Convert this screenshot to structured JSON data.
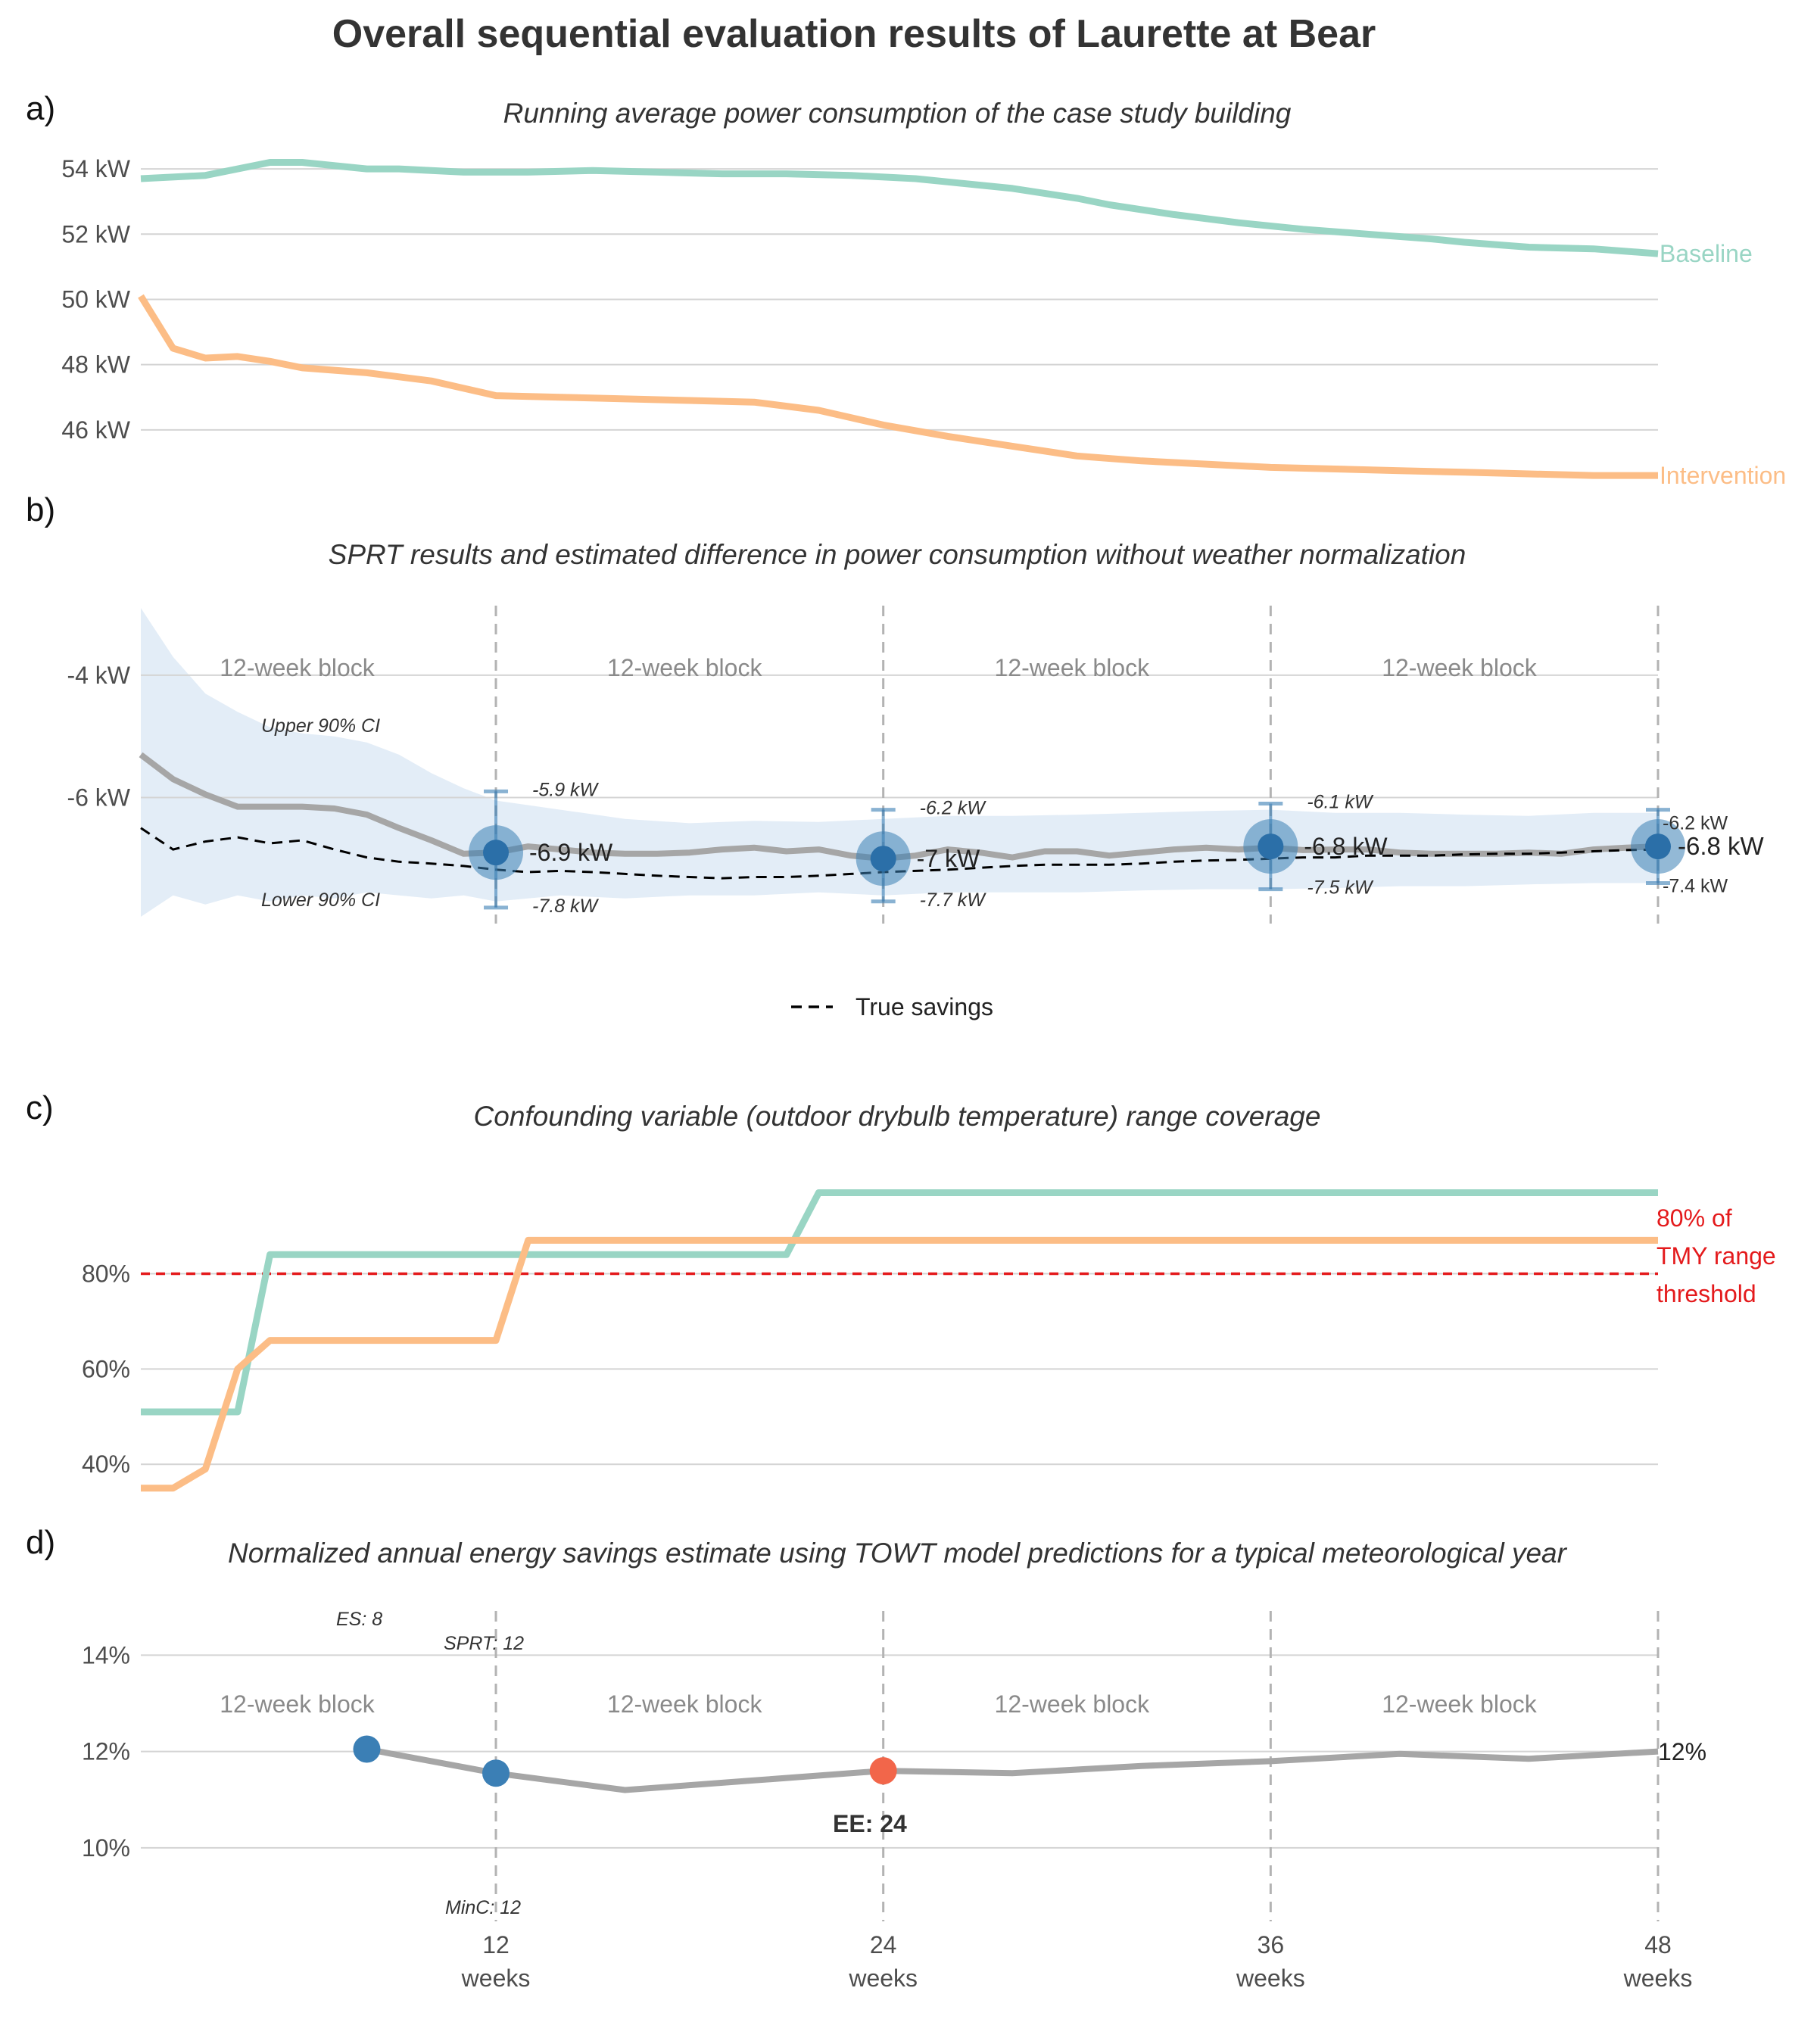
{
  "figure": {
    "title": "Overall sequential evaluation results of Laurette at Bear",
    "x_axis": {
      "ticks": [
        {
          "value": 12,
          "num": "12",
          "unit": "weeks"
        },
        {
          "value": 24,
          "num": "24",
          "unit": "weeks"
        },
        {
          "value": 36,
          "num": "36",
          "unit": "weeks"
        },
        {
          "value": 48,
          "num": "48",
          "unit": "weeks"
        }
      ],
      "xlim": [
        1,
        48
      ]
    },
    "block_label": "12-week block"
  },
  "panel_a": {
    "letter": "a)",
    "title": "Running average power consumption of the case study building"
  },
  "panel_b": {
    "letter": "b)",
    "title": "SPRT results and estimated difference in power consumption without weather normalization",
    "upper_ci_label": "Upper 90% CI",
    "lower_ci_label": "Lower 90% CI",
    "legend_label": "True savings",
    "estimate_labels": [
      {
        "x": 12,
        "est": "-6.9 kW",
        "upper": "-5.9 kW",
        "lower": "-7.8 kW"
      },
      {
        "x": 24,
        "est": "-7 kW",
        "upper": "-6.2 kW",
        "lower": "-7.7 kW"
      },
      {
        "x": 36,
        "est": "-6.8 kW",
        "upper": "-6.1 kW",
        "lower": "-7.5 kW"
      },
      {
        "x": 48,
        "est": "-6.8 kW",
        "upper": "-6.2 kW",
        "lower": "-7.4 kW"
      }
    ]
  },
  "panel_c": {
    "letter": "c)",
    "title": "Confounding variable (outdoor drybulb temperature) range coverage",
    "threshold_label": [
      "80% of",
      "TMY range",
      "threshold"
    ]
  },
  "panel_d": {
    "letter": "d)",
    "title": "Normalized annual energy savings estimate using TOWT model predictions for a typical meteorological year",
    "end_label": "12%",
    "annotations": {
      "es": "ES: 8",
      "sprt": "SPRT: 12",
      "ee": "EE: 24",
      "minc": "MinC: 12"
    }
  },
  "colors": {
    "baseline": "#99d5c4",
    "intervention": "#fcbd86",
    "estimate": "#a6a6a6",
    "ci_band": "#e3edf7",
    "point_blue": "#3b7fb5",
    "point_red": "#f2664a",
    "threshold": "#e41a1c"
  },
  "chart_data": [
    {
      "type": "line",
      "title": "Running average power consumption of the case study building",
      "ylim": [
        44,
        55
      ],
      "yticks": [
        "54 kW",
        "52 kW",
        "50 kW",
        "48 kW",
        "46 kW"
      ],
      "ytick_values": [
        54,
        52,
        50,
        48,
        46
      ],
      "series": [
        {
          "name": "Baseline",
          "x": [
            1,
            3,
            5,
            6,
            8,
            9,
            11,
            13,
            15,
            17,
            19,
            21,
            23,
            25,
            26,
            28,
            30,
            31,
            33,
            35,
            37,
            39,
            41,
            42,
            44,
            46,
            48
          ],
          "values": [
            53.7,
            53.8,
            54.2,
            54.2,
            54.0,
            54.0,
            53.9,
            53.9,
            53.95,
            53.9,
            53.85,
            53.85,
            53.8,
            53.7,
            53.6,
            53.4,
            53.1,
            52.9,
            52.6,
            52.35,
            52.15,
            52.0,
            51.85,
            51.75,
            51.6,
            51.55,
            51.4
          ]
        },
        {
          "name": "Intervention",
          "x": [
            1,
            2,
            3,
            4,
            5,
            6,
            8,
            10,
            12,
            14,
            16,
            18,
            20,
            22,
            24,
            26,
            28,
            30,
            32,
            34,
            36,
            38,
            40,
            42,
            44,
            46,
            48
          ],
          "values": [
            50.1,
            48.5,
            48.2,
            48.25,
            48.1,
            47.9,
            47.75,
            47.5,
            47.05,
            47.0,
            46.95,
            46.9,
            46.85,
            46.6,
            46.15,
            45.8,
            45.5,
            45.2,
            45.05,
            44.95,
            44.85,
            44.8,
            44.75,
            44.7,
            44.65,
            44.6,
            44.6
          ]
        }
      ]
    },
    {
      "type": "line",
      "title": "SPRT results and estimated difference in power consumption without weather normalization",
      "ylim": [
        -8,
        -2.8
      ],
      "yticks": [
        "-4 kW",
        "-6 kW"
      ],
      "ytick_values": [
        -4,
        -6
      ],
      "estimate": {
        "x": [
          1,
          2,
          3,
          4,
          5,
          6,
          7,
          8,
          9,
          10,
          11,
          12,
          13,
          14,
          15,
          16,
          17,
          18,
          19,
          20,
          21,
          22,
          23,
          24,
          25,
          26,
          27,
          28,
          29,
          30,
          31,
          32,
          33,
          34,
          35,
          36,
          37,
          38,
          39,
          40,
          41,
          42,
          43,
          44,
          45,
          46,
          47,
          48
        ],
        "values": [
          -5.3,
          -5.7,
          -5.95,
          -6.15,
          -6.15,
          -6.15,
          -6.18,
          -6.28,
          -6.5,
          -6.7,
          -6.92,
          -6.9,
          -6.8,
          -6.85,
          -6.9,
          -6.92,
          -6.92,
          -6.9,
          -6.85,
          -6.82,
          -6.88,
          -6.85,
          -6.95,
          -7.0,
          -6.95,
          -6.85,
          -6.9,
          -6.98,
          -6.88,
          -6.88,
          -6.95,
          -6.9,
          -6.85,
          -6.82,
          -6.85,
          -6.82,
          -6.86,
          -6.85,
          -6.85,
          -6.9,
          -6.92,
          -6.92,
          -6.92,
          -6.9,
          -6.92,
          -6.85,
          -6.82,
          -6.8
        ]
      },
      "true_savings": {
        "x": [
          1,
          2,
          3,
          4,
          5,
          6,
          7,
          8,
          9,
          10,
          11,
          12,
          13,
          14,
          15,
          16,
          17,
          18,
          19,
          20,
          21,
          22,
          23,
          24,
          25,
          26,
          27,
          28,
          29,
          30,
          31,
          32,
          33,
          34,
          35,
          36,
          37,
          38,
          39,
          40,
          41,
          42,
          43,
          44,
          45,
          46,
          47,
          48
        ],
        "values": [
          -6.5,
          -6.85,
          -6.72,
          -6.65,
          -6.75,
          -6.7,
          -6.85,
          -6.98,
          -7.05,
          -7.08,
          -7.12,
          -7.18,
          -7.22,
          -7.2,
          -7.22,
          -7.25,
          -7.28,
          -7.3,
          -7.32,
          -7.3,
          -7.3,
          -7.28,
          -7.25,
          -7.22,
          -7.2,
          -7.18,
          -7.15,
          -7.12,
          -7.1,
          -7.1,
          -7.1,
          -7.08,
          -7.05,
          -7.03,
          -7.02,
          -7.0,
          -6.98,
          -6.98,
          -6.95,
          -6.95,
          -6.95,
          -6.93,
          -6.92,
          -6.92,
          -6.9,
          -6.88,
          -6.86,
          -6.85
        ]
      },
      "ci_upper": {
        "x": [
          1,
          2,
          3,
          4,
          5,
          6,
          7,
          8,
          9,
          10,
          11,
          12,
          14,
          16,
          18,
          20,
          22,
          24,
          26,
          28,
          30,
          32,
          34,
          36,
          38,
          40,
          42,
          44,
          46,
          48
        ],
        "values": [
          -2.9,
          -3.7,
          -4.3,
          -4.6,
          -4.85,
          -4.95,
          -5.0,
          -5.1,
          -5.3,
          -5.6,
          -5.85,
          -6.05,
          -6.2,
          -6.35,
          -6.42,
          -6.38,
          -6.4,
          -6.35,
          -6.3,
          -6.3,
          -6.28,
          -6.25,
          -6.22,
          -6.2,
          -6.25,
          -6.25,
          -6.28,
          -6.3,
          -6.25,
          -6.25
        ]
      },
      "ci_lower": {
        "x": [
          1,
          2,
          3,
          4,
          5,
          6,
          7,
          8,
          9,
          10,
          11,
          12,
          14,
          16,
          18,
          20,
          22,
          24,
          26,
          28,
          30,
          32,
          34,
          36,
          38,
          40,
          42,
          44,
          46,
          48
        ],
        "values": [
          -7.95,
          -7.6,
          -7.75,
          -7.6,
          -7.7,
          -7.6,
          -7.65,
          -7.55,
          -7.6,
          -7.65,
          -7.6,
          -7.7,
          -7.6,
          -7.65,
          -7.6,
          -7.6,
          -7.55,
          -7.6,
          -7.55,
          -7.55,
          -7.55,
          -7.52,
          -7.5,
          -7.5,
          -7.48,
          -7.45,
          -7.45,
          -7.42,
          -7.4,
          -7.4
        ]
      },
      "sprt_points": [
        {
          "x": 12,
          "est": -6.9,
          "upper": -5.9,
          "lower": -7.8
        },
        {
          "x": 24,
          "est": -7.0,
          "upper": -6.2,
          "lower": -7.7
        },
        {
          "x": 36,
          "est": -6.8,
          "upper": -6.1,
          "lower": -7.5
        },
        {
          "x": 48,
          "est": -6.8,
          "upper": -6.2,
          "lower": -7.4
        }
      ]
    },
    {
      "type": "line",
      "title": "Confounding variable (outdoor drybulb temperature) range coverage",
      "ylim": [
        34,
        102
      ],
      "yticks": [
        "80%",
        "60%",
        "40%"
      ],
      "ytick_values": [
        80,
        60,
        40
      ],
      "threshold": 80,
      "series": [
        {
          "name": "Baseline",
          "x": [
            1,
            3,
            4,
            5,
            21,
            22,
            48
          ],
          "values": [
            51,
            51,
            51,
            84,
            84,
            97,
            97
          ]
        },
        {
          "name": "Intervention",
          "x": [
            1,
            2,
            3,
            4,
            5,
            6,
            12,
            13,
            48
          ],
          "values": [
            35,
            35,
            39,
            60,
            66,
            66,
            66,
            87,
            87
          ]
        }
      ]
    },
    {
      "type": "line",
      "title": "Normalized annual energy savings estimate using TOWT model predictions for a typical meteorological year",
      "ylim": [
        8.6,
        15.2
      ],
      "yticks": [
        "14%",
        "12%",
        "10%"
      ],
      "ytick_values": [
        14,
        12,
        10
      ],
      "series": [
        {
          "name": "",
          "x": [
            8,
            12,
            16,
            20,
            24,
            28,
            32,
            36,
            40,
            44,
            48
          ],
          "values": [
            12.05,
            11.55,
            11.2,
            11.4,
            11.6,
            11.55,
            11.7,
            11.8,
            11.95,
            11.85,
            12.0
          ]
        }
      ],
      "points": [
        {
          "x": 8,
          "y": 12.05,
          "color": "blue"
        },
        {
          "x": 12,
          "y": 11.55,
          "color": "blue"
        },
        {
          "x": 24,
          "y": 11.6,
          "color": "red"
        }
      ]
    }
  ]
}
